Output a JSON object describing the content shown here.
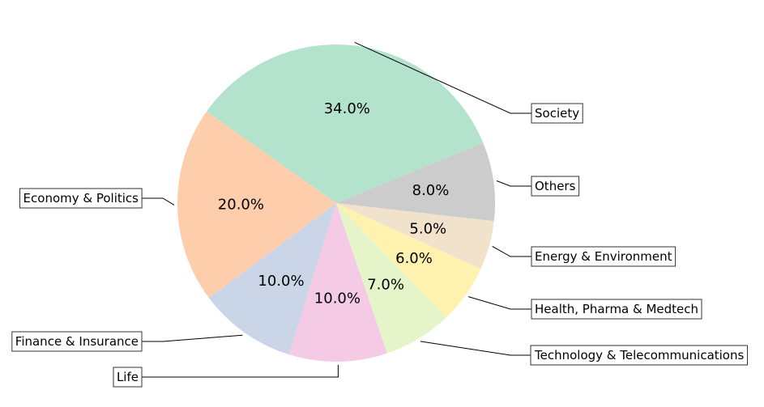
{
  "chart_data": {
    "type": "pie",
    "title": "",
    "slices": [
      {
        "label": "Society",
        "value": 34.0,
        "pct_label": "34.0%",
        "color": "#b3e2cd"
      },
      {
        "label": "Economy & Politics",
        "value": 20.0,
        "pct_label": "20.0%",
        "color": "#fdcdac"
      },
      {
        "label": "Finance & Insurance",
        "value": 10.0,
        "pct_label": "10.0%",
        "color": "#cbd5e8"
      },
      {
        "label": "Life",
        "value": 10.0,
        "pct_label": "10.0%",
        "color": "#f4cae4"
      },
      {
        "label": "Technology & Telecommunications",
        "value": 7.0,
        "pct_label": "7.0%",
        "color": "#e6f5c9"
      },
      {
        "label": "Health, Pharma & Medtech",
        "value": 6.0,
        "pct_label": "6.0%",
        "color": "#fff2ae"
      },
      {
        "label": "Energy & Environment",
        "value": 5.0,
        "pct_label": "5.0%",
        "color": "#f1e2cc"
      },
      {
        "label": "Others",
        "value": 8.0,
        "pct_label": "8.0%",
        "color": "#cccccc"
      }
    ],
    "start_angle_deg": 22.3,
    "direction": "counterclockwise",
    "legend": "none (labels with leader lines)"
  }
}
